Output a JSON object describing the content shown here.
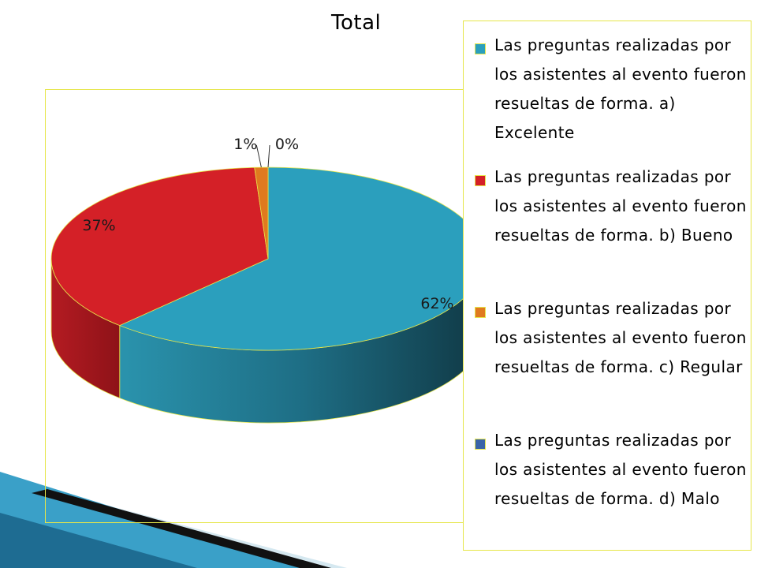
{
  "chart_data": {
    "type": "pie",
    "title": "Total",
    "slices": [
      {
        "name": "Las preguntas realizadas por los asistentes al evento fueron resueltas de forma. a) Excelente",
        "value": 62,
        "label": "62%",
        "color": "#2b9fbd"
      },
      {
        "name": "Las preguntas realizadas por los asistentes al evento fueron resueltas de forma. b) Bueno",
        "value": 37,
        "label": "37%",
        "color": "#d42027"
      },
      {
        "name": "Las preguntas realizadas por los asistentes al evento fueron resueltas de forma. c) Regular",
        "value": 1,
        "label": "1%",
        "color": "#e07a1f"
      },
      {
        "name": "Las preguntas realizadas por los asistentes al evento fueron resueltas de forma. d) Malo",
        "value": 0,
        "label": "0%",
        "color": "#3a64a8"
      }
    ],
    "legend_position": "right",
    "style": "3d"
  }
}
